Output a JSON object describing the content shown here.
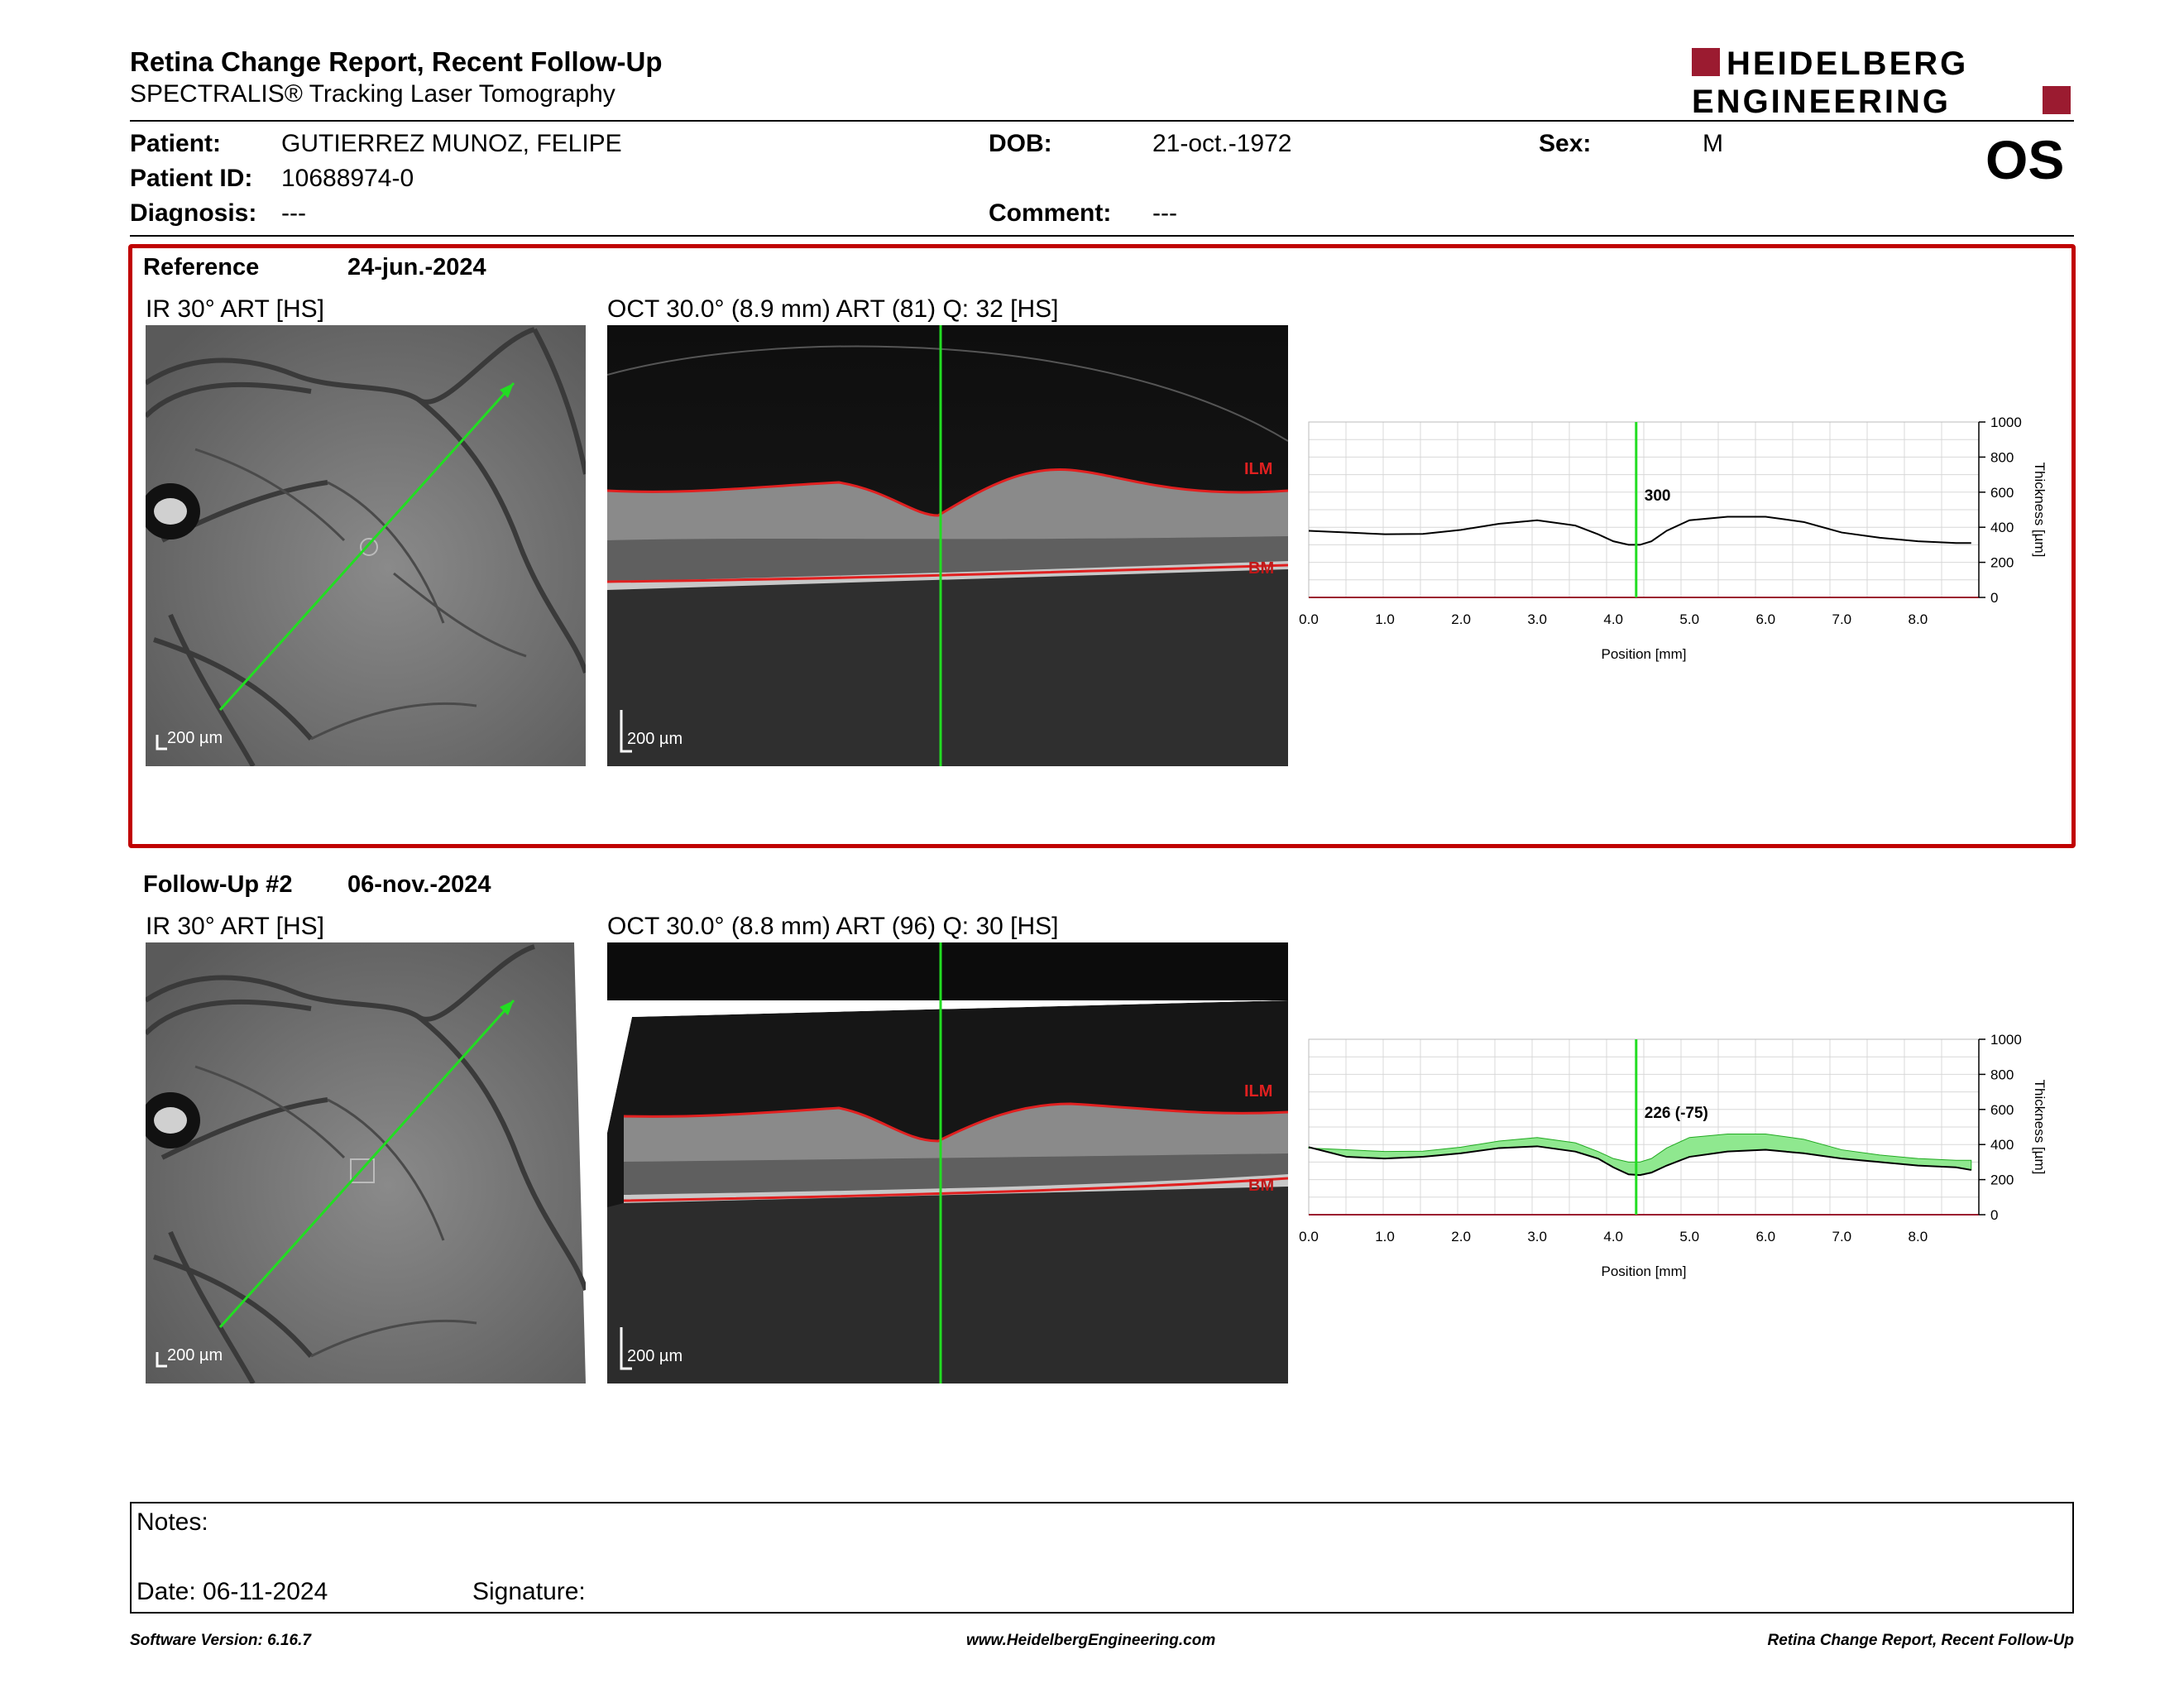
{
  "report": {
    "title": "Retina Change Report, Recent Follow-Up",
    "subtitle": "SPECTRALIS® Tracking Laser Tomography",
    "logo_line1": "HEIDELBERG",
    "logo_line2": "ENGINEERING",
    "eye": "OS"
  },
  "patient": {
    "patient_label": "Patient:",
    "patient_value": "GUTIERREZ MUNOZ, FELIPE",
    "id_label": "Patient ID:",
    "id_value": "10688974-0",
    "diagnosis_label": "Diagnosis:",
    "diagnosis_value": "---",
    "dob_label": "DOB:",
    "dob_value": "21-oct.-1972",
    "comment_label": "Comment:",
    "comment_value": "---",
    "sex_label": "Sex:",
    "sex_value": "M"
  },
  "reference": {
    "label": "Reference",
    "date": "24-jun.-2024",
    "ir_caption": "IR 30° ART [HS]",
    "oct_caption": "OCT 30.0° (8.9 mm) ART (81) Q: 32 [HS]",
    "scale_ir": "200 µm",
    "scale_oct": "200 µm",
    "ilm_label": "ILM",
    "bm_label": "BM",
    "readout": "300"
  },
  "followup": {
    "label": "Follow-Up #2",
    "date": "06-nov.-2024",
    "ir_caption": "IR 30° ART [HS]",
    "oct_caption": "OCT 30.0° (8.8 mm) ART (96) Q: 30 [HS]",
    "scale_ir": "200 µm",
    "scale_oct": "200 µm",
    "ilm_label": "ILM",
    "bm_label": "BM",
    "readout": "226 (-75)"
  },
  "chart_data": [
    {
      "type": "line",
      "xlabel": "Position [mm]",
      "ylabel": "Thickness [µm]",
      "xlim": [
        0,
        8.8
      ],
      "ylim": [
        0,
        1000
      ],
      "xticks": [
        "0.0",
        "1.0",
        "2.0",
        "3.0",
        "4.0",
        "5.0",
        "6.0",
        "7.0",
        "8.0"
      ],
      "yticks": [
        "0",
        "200",
        "400",
        "600",
        "800",
        "1000"
      ],
      "grid": true,
      "cursor_x": 4.3,
      "cursor_label": "300",
      "series": [
        {
          "x": [
            0,
            0.5,
            1,
            1.5,
            2,
            2.5,
            3,
            3.5,
            3.8,
            4.0,
            4.2,
            4.35,
            4.5,
            4.7,
            5.0,
            5.5,
            6.0,
            6.5,
            7.0,
            7.5,
            8.0,
            8.5,
            8.7
          ],
          "values": [
            380,
            370,
            360,
            362,
            385,
            420,
            440,
            410,
            360,
            320,
            300,
            300,
            320,
            380,
            440,
            460,
            460,
            430,
            370,
            340,
            320,
            310,
            310
          ]
        }
      ]
    },
    {
      "type": "area",
      "xlabel": "Position [mm]",
      "ylabel": "Thickness [µm]",
      "xlim": [
        0,
        8.8
      ],
      "ylim": [
        0,
        1000
      ],
      "xticks": [
        "0.0",
        "1.0",
        "2.0",
        "3.0",
        "4.0",
        "5.0",
        "6.0",
        "7.0",
        "8.0"
      ],
      "yticks": [
        "0",
        "200",
        "400",
        "600",
        "800",
        "1000"
      ],
      "grid": true,
      "cursor_x": 4.3,
      "cursor_label": "226 (-75)",
      "series": [
        {
          "x": [
            0,
            0.5,
            1,
            1.5,
            2,
            2.5,
            3,
            3.5,
            3.8,
            4.0,
            4.2,
            4.35,
            4.5,
            4.7,
            5.0,
            5.5,
            6.0,
            6.5,
            7.0,
            7.5,
            8.0,
            8.5,
            8.7
          ],
          "values": [
            380,
            370,
            360,
            362,
            385,
            420,
            440,
            410,
            360,
            320,
            300,
            300,
            320,
            380,
            440,
            460,
            460,
            430,
            370,
            340,
            320,
            310,
            310
          ]
        },
        {
          "x": [
            0,
            0.5,
            1,
            1.5,
            2,
            2.5,
            3,
            3.5,
            3.8,
            4.0,
            4.2,
            4.35,
            4.5,
            4.7,
            5.0,
            5.5,
            6.0,
            6.5,
            7.0,
            7.5,
            8.0,
            8.5,
            8.7
          ],
          "values": [
            385,
            330,
            320,
            330,
            350,
            380,
            390,
            360,
            320,
            270,
            230,
            226,
            240,
            280,
            330,
            360,
            370,
            350,
            320,
            300,
            280,
            270,
            255
          ]
        }
      ]
    }
  ],
  "notes": {
    "notes_label": "Notes:",
    "date_label": "Date: 06-11-2024",
    "signature_label": "Signature:"
  },
  "footer": {
    "software": "Software Version: 6.16.7",
    "website": "www.HeidelbergEngineering.com",
    "report_name": "Retina Change Report, Recent Follow-Up"
  },
  "colors": {
    "accent_red": "#c00000",
    "logo_red": "#9b1b30",
    "scan_green": "#22dd22",
    "diff_fill": "#8fe88f",
    "layer_red": "#e02020"
  }
}
